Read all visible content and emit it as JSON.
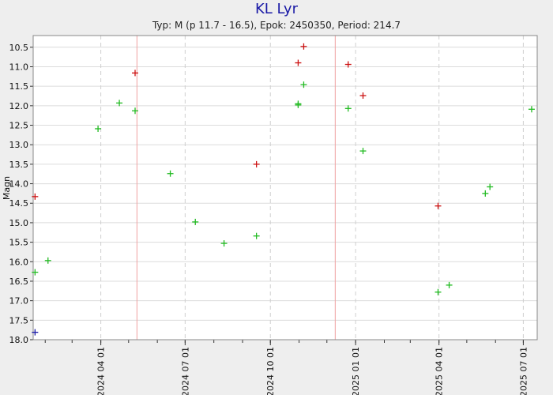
{
  "title": "KL Lyr",
  "subtitle": "Typ: M (p 11.7 - 16.5), Epok: 2450350, Period: 214.7",
  "chart_data": {
    "type": "scatter",
    "ylabel": "Magn",
    "xlabel": "",
    "ylim": [
      18.0,
      10.2
    ],
    "y_inverted": true,
    "xlim": [
      "2024-01-19",
      "2025-07-16"
    ],
    "grid": true,
    "y_ticks": [
      "10.5",
      "11.0",
      "11.5",
      "12.0",
      "12.5",
      "13.0",
      "13.5",
      "14.0",
      "14.5",
      "15.0",
      "15.5",
      "16.0",
      "16.5",
      "17.0",
      "17.5",
      "18.0"
    ],
    "x_ticks": [
      {
        "date": "2024-04-01",
        "label": "2024 04 01"
      },
      {
        "date": "2024-07-01",
        "label": "2024 07 01"
      },
      {
        "date": "2024-10-01",
        "label": "2024 10 01"
      },
      {
        "date": "2025-01-01",
        "label": "2025 01 01"
      },
      {
        "date": "2025-04-01",
        "label": "2025 04 01"
      },
      {
        "date": "2025-07-01",
        "label": "2025 07 01"
      }
    ],
    "maxima_dates": [
      "2024-05-10",
      "2024-12-10"
    ],
    "series": [
      {
        "color": "#22bb22",
        "points": [
          {
            "x": "2024-01-21",
            "y": 16.27
          },
          {
            "x": "2024-02-04",
            "y": 15.97
          },
          {
            "x": "2024-03-29",
            "y": 12.59
          },
          {
            "x": "2024-04-21",
            "y": 11.93
          },
          {
            "x": "2024-05-08",
            "y": 12.13
          },
          {
            "x": "2024-06-15",
            "y": 13.74
          },
          {
            "x": "2024-07-12",
            "y": 14.98
          },
          {
            "x": "2024-08-12",
            "y": 15.53
          },
          {
            "x": "2024-09-16",
            "y": 15.34
          },
          {
            "x": "2024-10-31",
            "y": 11.95
          },
          {
            "x": "2024-10-31",
            "y": 11.98
          },
          {
            "x": "2024-11-06",
            "y": 11.46
          },
          {
            "x": "2024-12-24",
            "y": 12.07
          },
          {
            "x": "2025-01-09",
            "y": 13.16
          },
          {
            "x": "2025-03-31",
            "y": 16.78
          },
          {
            "x": "2025-04-12",
            "y": 16.6
          },
          {
            "x": "2025-05-21",
            "y": 14.25
          },
          {
            "x": "2025-05-26",
            "y": 14.08
          },
          {
            "x": "2025-07-10",
            "y": 12.09
          }
        ]
      },
      {
        "color": "#cc1111",
        "points": [
          {
            "x": "2024-01-21",
            "y": 14.33
          },
          {
            "x": "2024-05-08",
            "y": 11.16
          },
          {
            "x": "2024-09-16",
            "y": 13.5
          },
          {
            "x": "2024-10-31",
            "y": 10.9
          },
          {
            "x": "2024-11-06",
            "y": 10.48
          },
          {
            "x": "2024-12-24",
            "y": 10.94
          },
          {
            "x": "2025-01-09",
            "y": 11.74
          },
          {
            "x": "2025-03-31",
            "y": 14.57
          }
        ]
      },
      {
        "color": "#1a1aa6",
        "points": [
          {
            "x": "2024-01-21",
            "y": 17.81
          }
        ]
      }
    ]
  }
}
